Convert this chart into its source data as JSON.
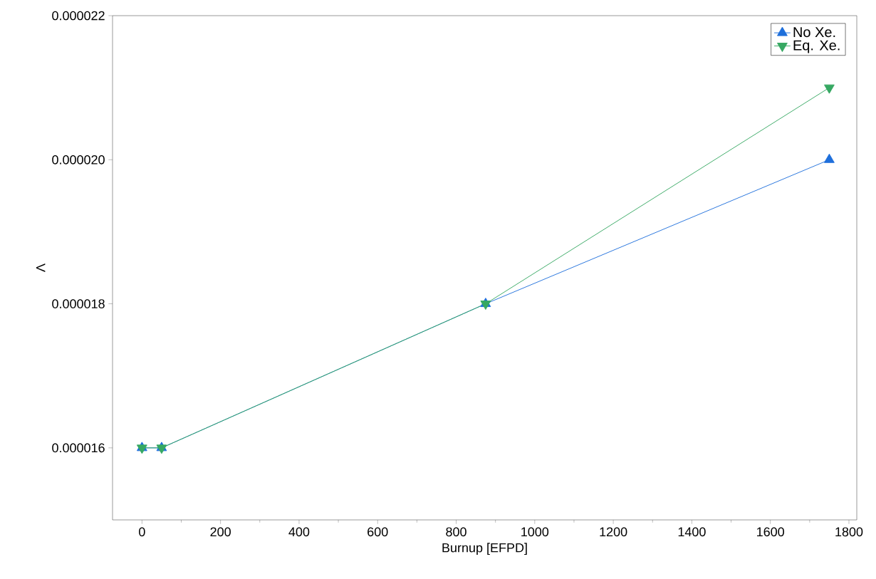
{
  "chart_data": {
    "type": "line",
    "xlabel": "Burnup  [EFPD]",
    "ylabel": "Λ",
    "xlim": [
      -75,
      1820
    ],
    "ylim": [
      1.5e-05,
      2.2e-05
    ],
    "xticks": [
      0,
      200,
      400,
      600,
      800,
      1000,
      1200,
      1400,
      1600,
      1800
    ],
    "yticks": [
      {
        "value": 1.6e-05,
        "label": "0.000016"
      },
      {
        "value": 1.8e-05,
        "label": "0.000018"
      },
      {
        "value": 2e-05,
        "label": "0.000020"
      },
      {
        "value": 2.2e-05,
        "label": "0.000022"
      }
    ],
    "x": [
      0,
      50,
      875,
      1750
    ],
    "series": [
      {
        "name": "No Xe.",
        "color": "#1e6fdb",
        "marker": "triangle",
        "values": [
          1.6e-05,
          1.6e-05,
          1.8e-05,
          2e-05
        ]
      },
      {
        "name": "Eq. Xe.",
        "color": "#36a862",
        "marker": "triangle down",
        "values": [
          1.6e-05,
          1.6e-05,
          1.8e-05,
          2.1e-05
        ]
      }
    ],
    "grid": false,
    "legend": "top right",
    "line_style": "solid"
  }
}
